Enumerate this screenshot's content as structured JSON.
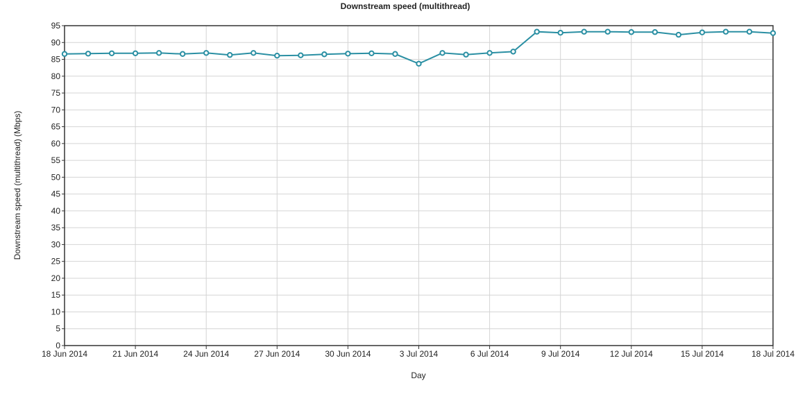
{
  "chart_data": {
    "type": "line",
    "title": "Downstream speed (multithread)",
    "xlabel": "Day",
    "ylabel": "Downstream speed (multithread) (Mbps)",
    "ylim": [
      0,
      95
    ],
    "yticks": [
      0,
      5,
      10,
      15,
      20,
      25,
      30,
      35,
      40,
      45,
      50,
      55,
      60,
      65,
      70,
      75,
      80,
      85,
      90,
      95
    ],
    "grid": true,
    "xrange": [
      "18 Jun 2014",
      "18 Jul 2014"
    ],
    "xtick_labels": [
      "18 Jun 2014",
      "21 Jun 2014",
      "24 Jun 2014",
      "27 Jun 2014",
      "30 Jun 2014",
      "3 Jul 2014",
      "6 Jul 2014",
      "9 Jul 2014",
      "12 Jul 2014",
      "15 Jul 2014",
      "18 Jul 2014"
    ],
    "colors": {
      "series": "#2a8fa3",
      "axis": "#333333",
      "grid": "#d4d4d4"
    },
    "series": [
      {
        "x": [
          "18 Jun 2014",
          "19 Jun 2014",
          "20 Jun 2014",
          "21 Jun 2014",
          "22 Jun 2014",
          "23 Jun 2014",
          "24 Jun 2014",
          "25 Jun 2014",
          "26 Jun 2014",
          "27 Jun 2014",
          "28 Jun 2014",
          "29 Jun 2014",
          "30 Jun 2014",
          "1 Jul 2014",
          "2 Jul 2014",
          "3 Jul 2014",
          "4 Jul 2014",
          "5 Jul 2014",
          "6 Jul 2014",
          "7 Jul 2014",
          "8 Jul 2014",
          "9 Jul 2014",
          "10 Jul 2014",
          "11 Jul 2014",
          "12 Jul 2014",
          "13 Jul 2014",
          "14 Jul 2014",
          "15 Jul 2014",
          "16 Jul 2014",
          "17 Jul 2014",
          "18 Jul 2014"
        ],
        "values": [
          86.6,
          86.7,
          86.8,
          86.8,
          86.9,
          86.6,
          86.9,
          86.3,
          86.9,
          86.1,
          86.2,
          86.5,
          86.7,
          86.8,
          86.6,
          83.7,
          86.9,
          86.4,
          86.9,
          87.3,
          93.2,
          92.9,
          93.2,
          93.2,
          93.1,
          93.1,
          92.3,
          93.0,
          93.2,
          93.2,
          92.8
        ]
      }
    ]
  }
}
